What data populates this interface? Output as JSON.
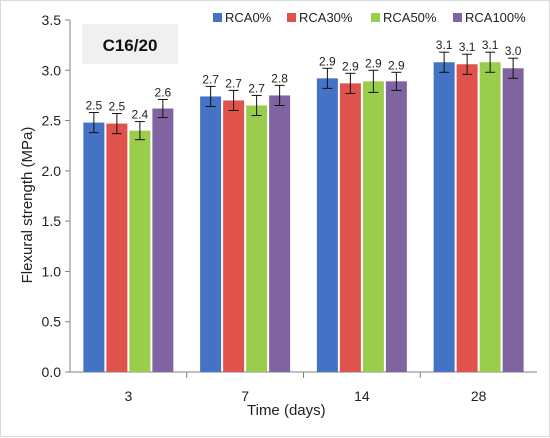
{
  "chart_data": {
    "type": "bar",
    "title": "C16/20",
    "xlabel": "Time (days)",
    "ylabel": "Flexural strength (MPa)",
    "ylim": [
      0,
      3.5
    ],
    "yticks": [
      "0.0",
      "0.5",
      "1.0",
      "1.5",
      "2.0",
      "2.5",
      "3.0",
      "3.5"
    ],
    "categories": [
      "3",
      "7",
      "14",
      "28"
    ],
    "grid": false,
    "legend_position": "top-right",
    "error_bars": true,
    "series": [
      {
        "name": "RCA0%",
        "color": "#4472C4",
        "values": [
          2.48,
          2.74,
          2.92,
          3.08
        ],
        "errors": [
          0.1,
          0.1,
          0.1,
          0.1
        ],
        "labels": [
          "2.5",
          "2.7",
          "2.9",
          "3.1"
        ]
      },
      {
        "name": "RCA30%",
        "color": "#E0534C",
        "values": [
          2.47,
          2.7,
          2.87,
          3.06
        ],
        "errors": [
          0.1,
          0.1,
          0.1,
          0.1
        ],
        "labels": [
          "2.5",
          "2.7",
          "2.9",
          "3.1"
        ]
      },
      {
        "name": "RCA50%",
        "color": "#9ACD4C",
        "values": [
          2.4,
          2.65,
          2.89,
          3.08
        ],
        "errors": [
          0.09,
          0.1,
          0.11,
          0.1
        ],
        "labels": [
          "2.4",
          "2.7",
          "2.9",
          "3.1"
        ]
      },
      {
        "name": "RCA100%",
        "color": "#8064A2",
        "values": [
          2.62,
          2.75,
          2.89,
          3.02
        ],
        "errors": [
          0.09,
          0.1,
          0.09,
          0.1
        ],
        "labels": [
          "2.6",
          "2.8",
          "2.9",
          "3.0"
        ]
      }
    ]
  }
}
